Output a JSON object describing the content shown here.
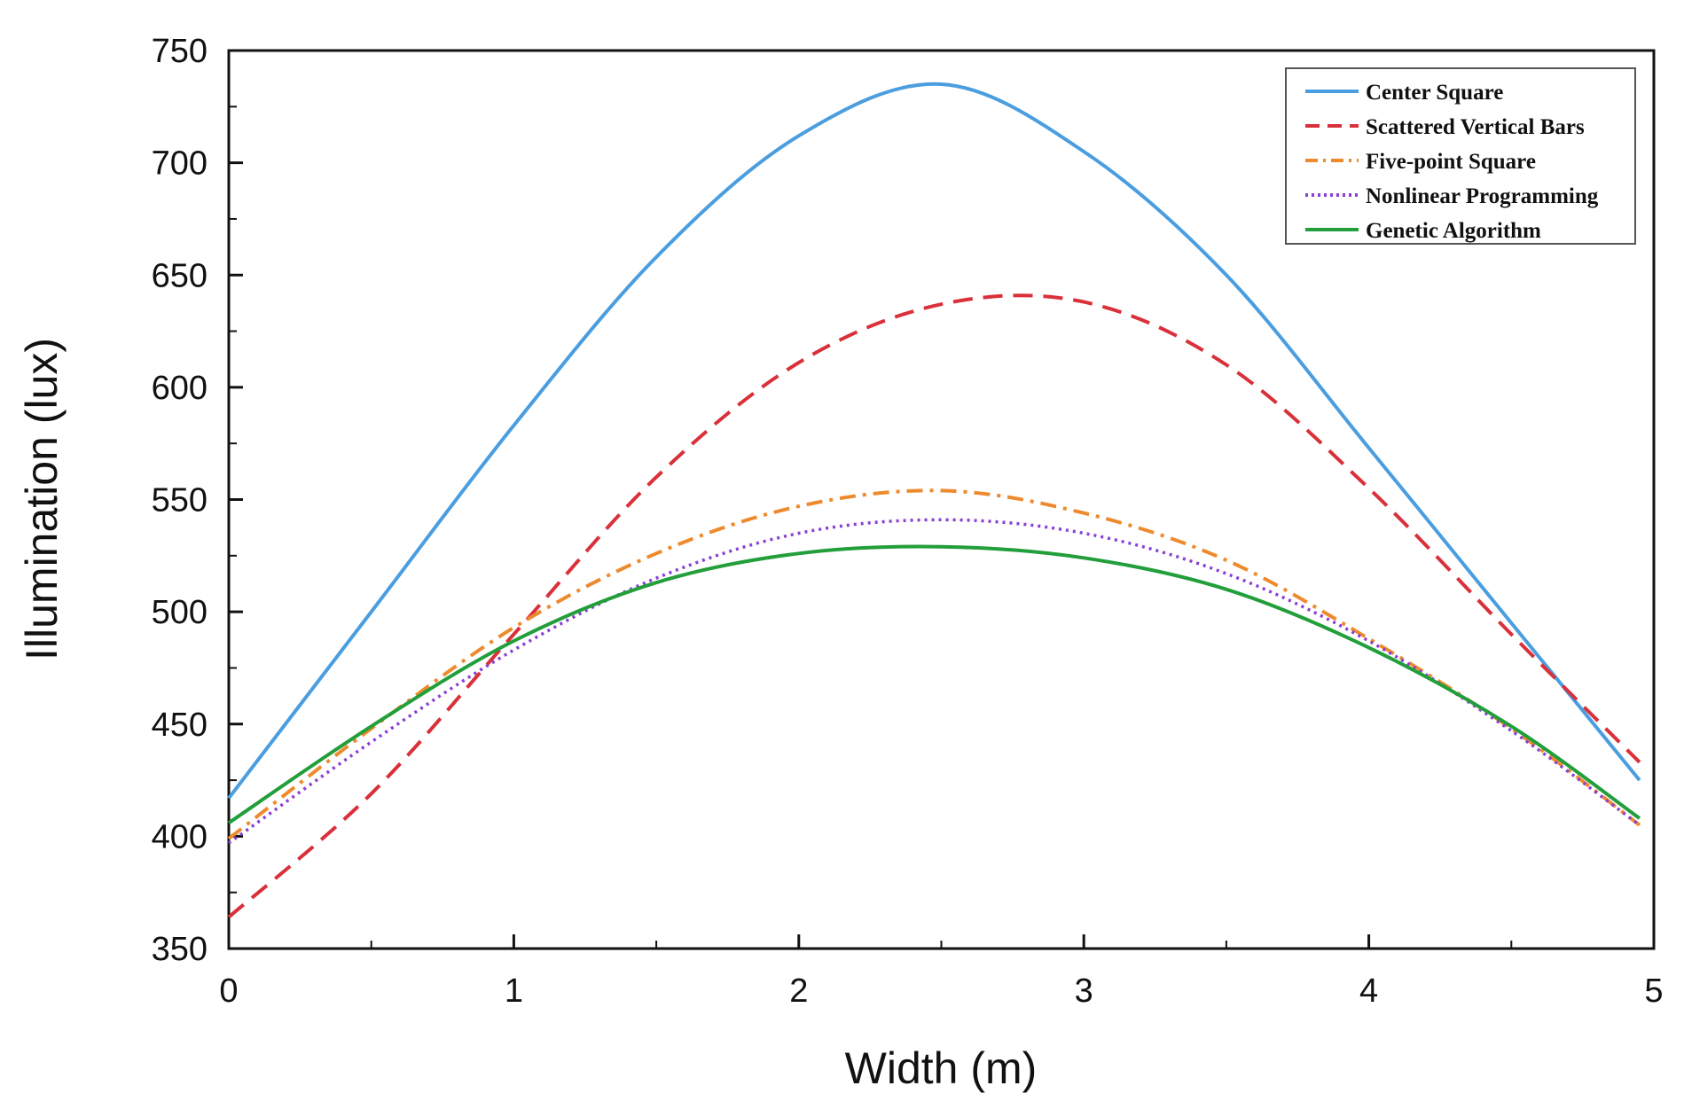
{
  "chart_data": {
    "type": "line",
    "title": "",
    "xlabel": "Width (m)",
    "ylabel": "Illumination (lux)",
    "xlim": [
      0,
      5
    ],
    "ylim": [
      350,
      750
    ],
    "xticks": [
      0,
      1,
      2,
      3,
      4,
      5
    ],
    "yticks": [
      350,
      400,
      450,
      500,
      550,
      600,
      650,
      700,
      750
    ],
    "x": [
      0,
      0.5,
      1,
      1.5,
      2,
      2.5,
      3,
      3.5,
      4,
      4.5,
      4.95
    ],
    "legend_position": "top-right",
    "grid": false,
    "series": [
      {
        "name": "Center Square",
        "color": "#4a9ee0",
        "dash": "solid",
        "values": [
          417,
          500,
          583,
          658,
          712,
          735,
          705,
          650,
          573,
          495,
          425
        ]
      },
      {
        "name": "Scattered Vertical Bars",
        "color": "#d9303a",
        "dash": "dashed",
        "values": [
          364,
          419,
          490,
          560,
          611,
          637,
          638,
          610,
          555,
          490,
          433
        ]
      },
      {
        "name": "Five-point Square",
        "color": "#ee8a2e",
        "dash": "dashdot",
        "values": [
          399,
          448,
          493,
          526,
          547,
          554,
          544,
          523,
          488,
          448,
          405
        ]
      },
      {
        "name": "Nonlinear Programming",
        "color": "#8a3fd6",
        "dash": "dotted",
        "values": [
          397,
          442,
          483,
          515,
          535,
          541,
          535,
          517,
          487,
          447,
          405
        ]
      },
      {
        "name": "Genetic Algorithm",
        "color": "#229e3b",
        "dash": "solid",
        "values": [
          406,
          449,
          487,
          513,
          526,
          529,
          524,
          510,
          484,
          449,
          408
        ]
      }
    ]
  }
}
